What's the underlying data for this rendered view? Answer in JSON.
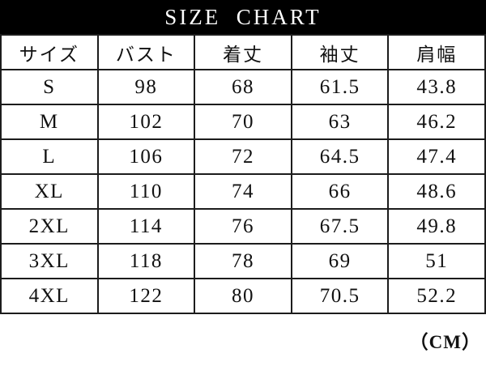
{
  "chart_data": {
    "type": "table",
    "title": "SIZE  CHART",
    "columns": [
      "サイズ",
      "バスト",
      "着丈",
      "袖丈",
      "肩幅"
    ],
    "rows": [
      [
        "S",
        "98",
        "68",
        "61.5",
        "43.8"
      ],
      [
        "M",
        "102",
        "70",
        "63",
        "46.2"
      ],
      [
        "L",
        "106",
        "72",
        "64.5",
        "47.4"
      ],
      [
        "XL",
        "110",
        "74",
        "66",
        "48.6"
      ],
      [
        "2XL",
        "114",
        "76",
        "67.5",
        "49.8"
      ],
      [
        "3XL",
        "118",
        "78",
        "69",
        "51"
      ],
      [
        "4XL",
        "122",
        "80",
        "70.5",
        "52.2"
      ]
    ],
    "unit": "CM"
  },
  "footer": {
    "unit_label": "（CM）"
  },
  "colors": {
    "title_bar_background": "#000000",
    "title_text": "#ffffff",
    "table_border": "#1c1c1c",
    "body_text": "#111111",
    "background": "#ffffff"
  }
}
